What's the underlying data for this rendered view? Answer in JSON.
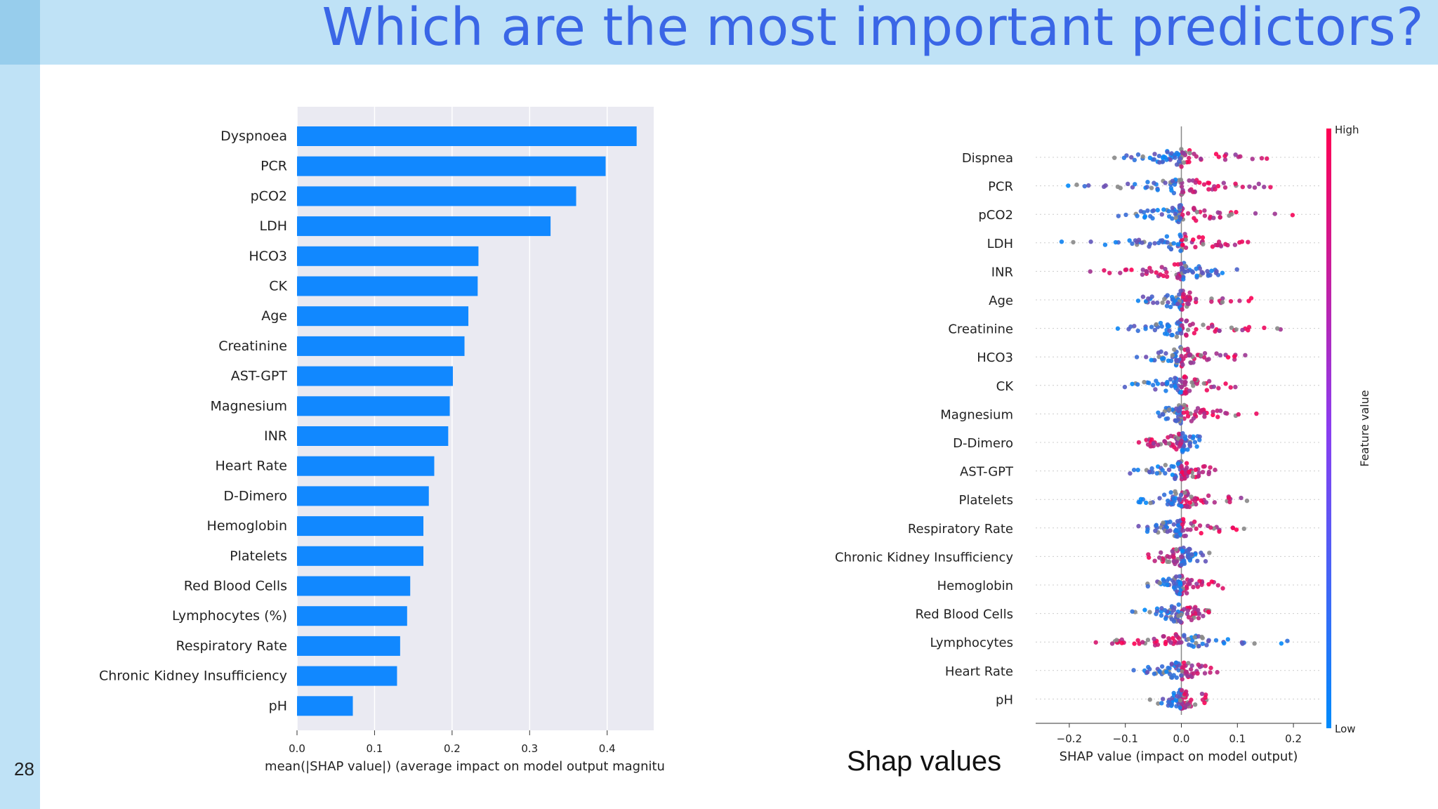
{
  "slide": {
    "title": "Which are the most important predictors?",
    "page_number": "28",
    "caption": "Shap values"
  },
  "chart_data": [
    {
      "type": "bar",
      "orientation": "horizontal",
      "categories": [
        "Dyspnoea",
        "PCR",
        "pCO2",
        "LDH",
        "HCO3",
        "CK",
        "Age",
        "Creatinine",
        "AST-GPT",
        "Magnesium",
        "INR",
        "Heart Rate",
        "D-Dimero",
        "Hemoglobin",
        "Platelets",
        "Red Blood Cells",
        "Lymphocytes (%)",
        "Respiratory Rate",
        "Chronic Kidney Insufficiency",
        "pH"
      ],
      "values": [
        0.438,
        0.398,
        0.36,
        0.327,
        0.234,
        0.233,
        0.221,
        0.216,
        0.201,
        0.197,
        0.195,
        0.177,
        0.17,
        0.163,
        0.163,
        0.146,
        0.142,
        0.133,
        0.129,
        0.072
      ],
      "xlabel": "mean(|SHAP value|) (average impact on model output magnitu",
      "xticks": [
        "0.0",
        "0.1",
        "0.2",
        "0.3",
        "0.4"
      ],
      "xlim": [
        0,
        0.46
      ],
      "bar_color": "#1188ff",
      "background": "#eaeaf2",
      "grid": true
    },
    {
      "type": "scatter",
      "subtype": "beeswarm",
      "features": [
        "Dispnea",
        "PCR",
        "pCO2",
        "LDH",
        "INR",
        "Age",
        "Creatinine",
        "HCO3",
        "CK",
        "Magnesium",
        "D-Dimero",
        "AST-GPT",
        "Platelets",
        "Respiratory Rate",
        "Chronic Kidney Insufficiency",
        "Hemoglobin",
        "Red Blood Cells",
        "Lymphocytes",
        "Heart Rate",
        "pH"
      ],
      "xlabel": "SHAP value (impact on model output)",
      "xticks": [
        "−0.2",
        "−0.1",
        "0.0",
        "0.1",
        "0.2"
      ],
      "xlim": [
        -0.26,
        0.25
      ],
      "colorbar": {
        "label": "Feature value",
        "high": "High",
        "low": "Low",
        "high_color": "#ff0052",
        "low_color": "#008bfb"
      },
      "ranges": [
        [
          -0.15,
          0.17
        ],
        [
          -0.23,
          0.2
        ],
        [
          -0.17,
          0.21
        ],
        [
          -0.23,
          0.2
        ],
        [
          -0.21,
          0.12
        ],
        [
          -0.11,
          0.15
        ],
        [
          -0.13,
          0.22
        ],
        [
          -0.1,
          0.15
        ],
        [
          -0.15,
          0.12
        ],
        [
          -0.05,
          0.17
        ],
        [
          -0.11,
          0.05
        ],
        [
          -0.13,
          0.07
        ],
        [
          -0.1,
          0.13
        ],
        [
          -0.09,
          0.16
        ],
        [
          -0.07,
          0.06
        ],
        [
          -0.07,
          0.1
        ],
        [
          -0.12,
          0.08
        ],
        [
          -0.17,
          0.24
        ],
        [
          -0.1,
          0.07
        ],
        [
          -0.06,
          0.05
        ]
      ]
    }
  ]
}
